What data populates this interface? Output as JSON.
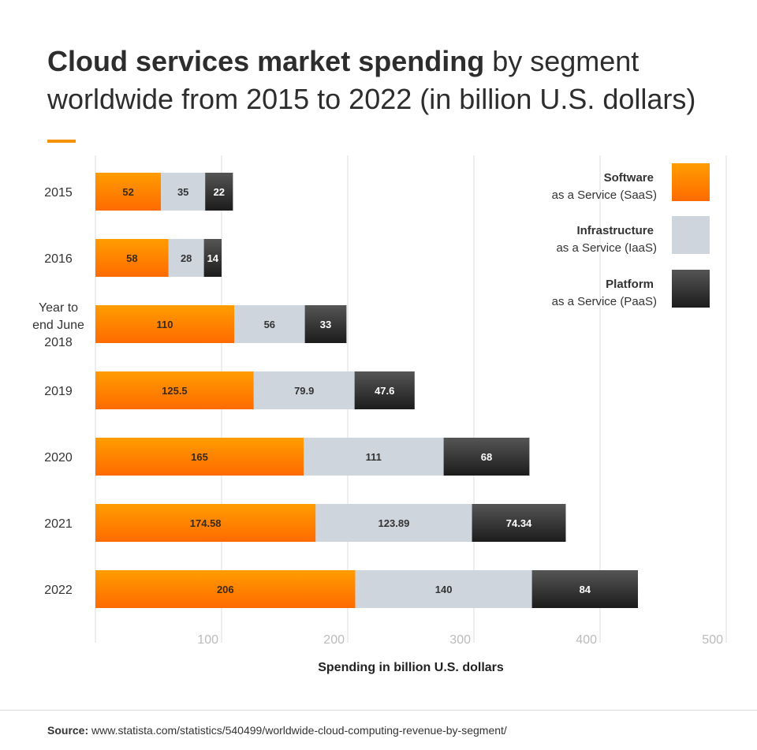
{
  "title": {
    "bold": "Cloud services market spending",
    "rest": " by segment worldwide from 2015 to 2022 (in billion U.S. dollars)"
  },
  "colors": {
    "accent": "#f39200",
    "saas_top": "#ff9d00",
    "saas_bottom": "#ff6a00",
    "iaas": "#cfd5dd",
    "paas_top": "#555555",
    "paas_bottom": "#1c1c1c",
    "grid": "#dddddd"
  },
  "chart_data": {
    "type": "bar",
    "orientation": "horizontal",
    "stacked": true,
    "categories": [
      "2015",
      "2016",
      "Year to end June 2018",
      "2019",
      "2020",
      "2021",
      "2022"
    ],
    "category_lines": [
      [
        "2015"
      ],
      [
        "2016"
      ],
      [
        "Year to",
        "end June",
        "2018"
      ],
      [
        "2019"
      ],
      [
        "2020"
      ],
      [
        "2021"
      ],
      [
        "2022"
      ]
    ],
    "series": [
      {
        "name": "Software as a Service (SaaS)",
        "legend_bold": "Software",
        "legend_sub": "as a Service (SaaS)",
        "values": [
          52,
          58,
          110,
          125.5,
          165,
          174.58,
          206
        ],
        "labels": [
          "52",
          "58",
          "110",
          "125.5",
          "165",
          "174.58",
          "206"
        ]
      },
      {
        "name": "Infrastructure as a Service (IaaS)",
        "legend_bold": "Infrastructure",
        "legend_sub": "as a Service (IaaS)",
        "values": [
          35,
          28,
          56,
          79.9,
          111,
          123.89,
          140
        ],
        "labels": [
          "35",
          "28",
          "56",
          "79.9",
          "111",
          "123.89",
          "140"
        ]
      },
      {
        "name": "Platform as a Service (PaaS)",
        "legend_bold": "Platform",
        "legend_sub": "as a Service (PaaS)",
        "values": [
          22,
          14,
          33,
          47.6,
          68,
          74.34,
          84
        ],
        "labels": [
          "22",
          "14",
          "33",
          "47.6",
          "68",
          "74.34",
          "84"
        ]
      }
    ],
    "xlim": [
      0,
      500
    ],
    "xticks": [
      100,
      200,
      300,
      400,
      500
    ],
    "xlabel": "Spending in billion U.S. dollars",
    "grid": true,
    "legend_position": "top-right"
  },
  "source": {
    "label": "Source:",
    "text": " www.statista.com/statistics/540499/worldwide-cloud-computing-revenue-by-segment/"
  }
}
